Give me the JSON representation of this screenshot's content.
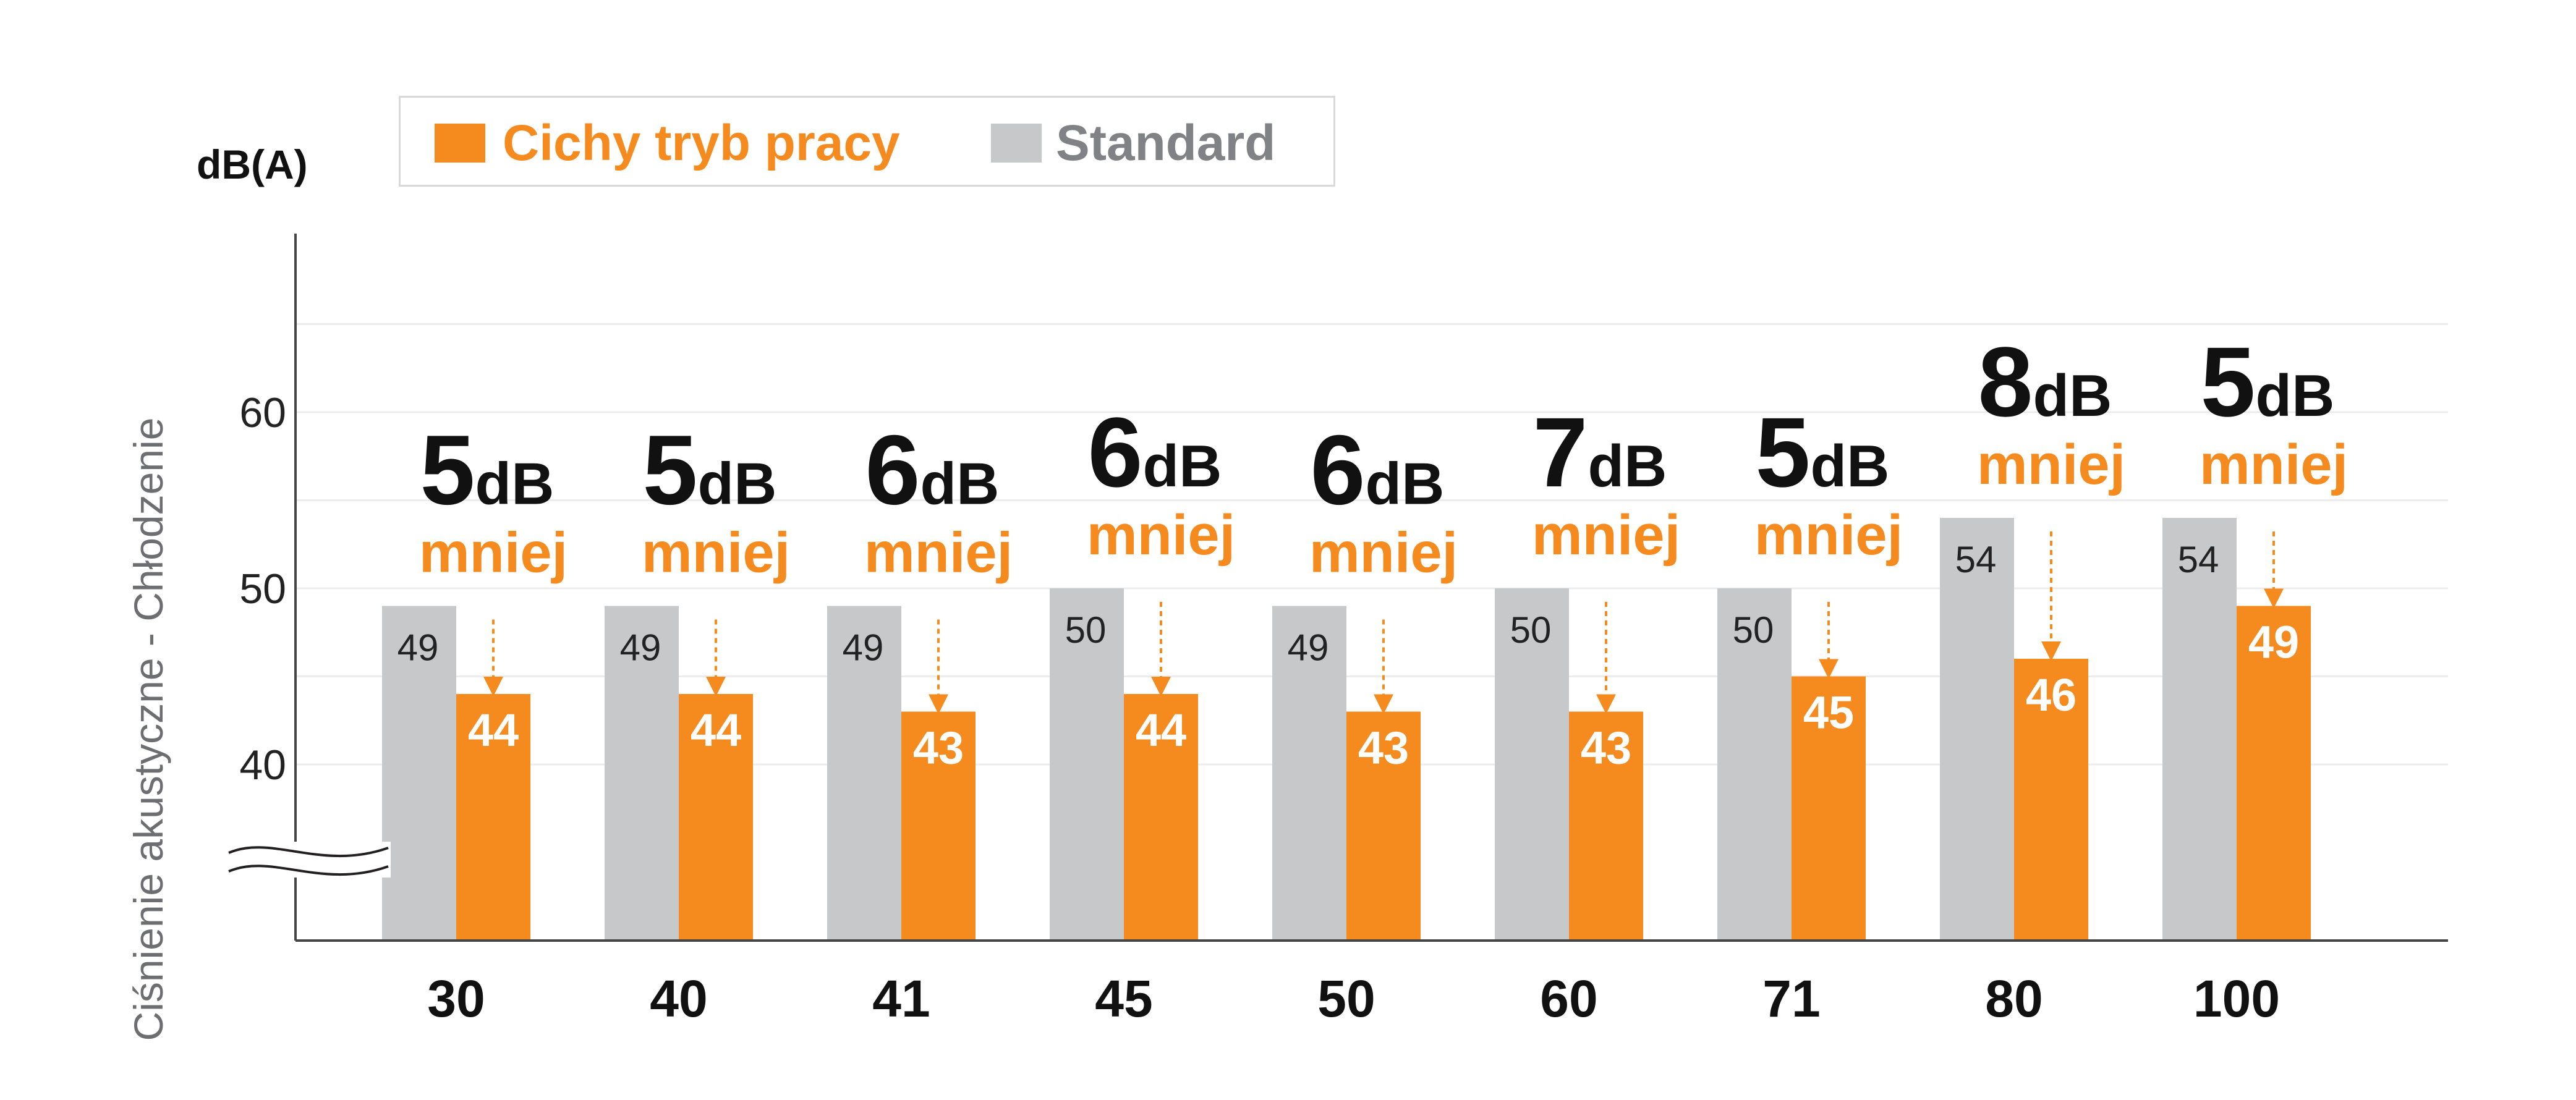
{
  "chart_data": {
    "type": "bar",
    "ylabel": "Ciśnienie akustyczne - Chłodzenie",
    "unit_label": "dB(A)",
    "ylim": [
      30,
      70
    ],
    "y_ticks": [
      40,
      50,
      60
    ],
    "axis_break": true,
    "grid": true,
    "legend_position": "top-left",
    "categories": [
      "30",
      "40",
      "41",
      "45",
      "50",
      "60",
      "71",
      "80",
      "100"
    ],
    "series": [
      {
        "name": "Cichy tryb pracy",
        "color": "#f58a1f",
        "values": [
          44,
          44,
          43,
          44,
          43,
          43,
          45,
          46,
          49
        ]
      },
      {
        "name": "Standard",
        "color": "#c7c8ca",
        "values": [
          49,
          49,
          49,
          50,
          49,
          50,
          50,
          54,
          54
        ]
      }
    ],
    "reduction": {
      "unit": "dB",
      "word": "mniej",
      "values": [
        "5",
        "5",
        "6",
        "6",
        "6",
        "7",
        "5",
        "8",
        "5"
      ]
    }
  }
}
